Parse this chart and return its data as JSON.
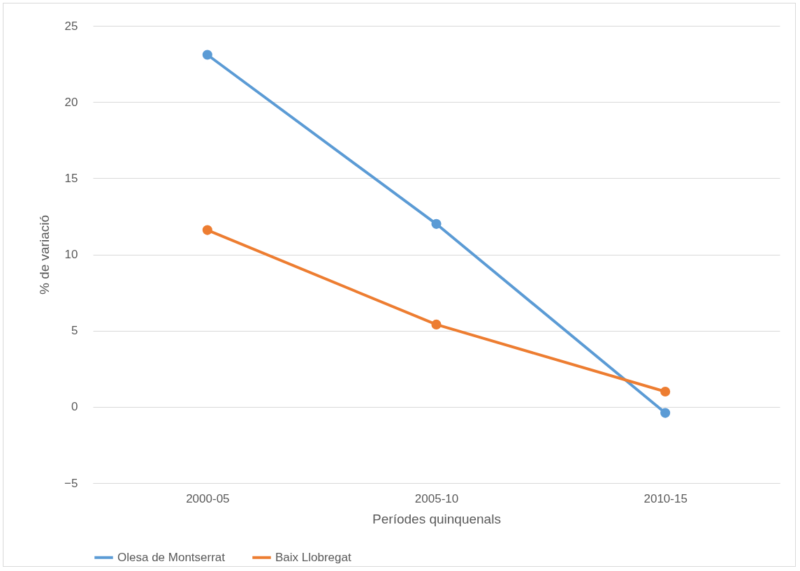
{
  "chart_data": {
    "type": "line",
    "xlabel": "Períodes quinquenals",
    "ylabel": "% de variació",
    "categories": [
      "2000-05",
      "2005-10",
      "2010-15"
    ],
    "series": [
      {
        "name": "Olesa de Montserrat",
        "color": "#5b9bd5",
        "values": [
          23.1,
          12.0,
          -0.4
        ]
      },
      {
        "name": "Baix Llobregat",
        "color": "#ed7d31",
        "values": [
          11.6,
          5.4,
          1.0
        ]
      }
    ],
    "ylim": [
      -5,
      25
    ],
    "yticks": [
      -5,
      0,
      5,
      10,
      15,
      20,
      25
    ],
    "grid": "y",
    "legend": "bottom",
    "marker": "circle",
    "line_style": "solid"
  }
}
